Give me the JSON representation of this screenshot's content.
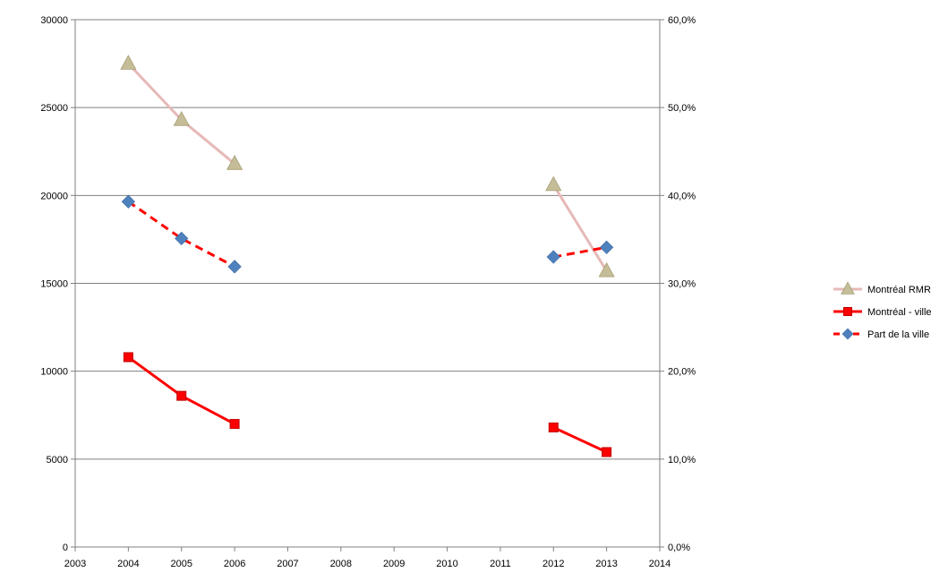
{
  "chart_data": {
    "type": "line",
    "title": "",
    "xlabel": "",
    "ylabel": "",
    "y2label": "",
    "grid": true,
    "legend_position": "right",
    "x_axis": {
      "range": [
        2003,
        2014
      ],
      "ticks": [
        "2003",
        "2004",
        "2005",
        "2006",
        "2007",
        "2008",
        "2009",
        "2010",
        "2011",
        "2012",
        "2013",
        "2014"
      ]
    },
    "y_axis_left": {
      "range": [
        0,
        30000
      ],
      "ticks": [
        "0",
        "5000",
        "10000",
        "15000",
        "20000",
        "25000",
        "30000"
      ]
    },
    "y_axis_right": {
      "range": [
        0,
        60
      ],
      "unit": "%",
      "ticks": [
        "0,0%",
        "10,0%",
        "20,0%",
        "30,0%",
        "40,0%",
        "50,0%",
        "60,0%"
      ]
    },
    "series": [
      {
        "name": "Montréal RMR",
        "axis": "left",
        "color": "#e6b9b8",
        "marker": "triangle",
        "marker_color": "#c4bd97",
        "line_style": "solid",
        "segments": [
          {
            "x": [
              2004,
              2005,
              2006
            ],
            "y": [
              27500,
              24300,
              21800
            ]
          },
          {
            "x": [
              2012,
              2013
            ],
            "y": [
              20600,
              15700
            ]
          }
        ]
      },
      {
        "name": "Montréal - ville",
        "axis": "left",
        "color": "#ff0000",
        "marker": "square",
        "marker_color": "#ff0000",
        "line_style": "solid",
        "segments": [
          {
            "x": [
              2004,
              2005,
              2006
            ],
            "y": [
              10800,
              8600,
              7000
            ]
          },
          {
            "x": [
              2012,
              2013
            ],
            "y": [
              6800,
              5400
            ]
          }
        ]
      },
      {
        "name": "Part de la ville",
        "axis": "right",
        "color": "#ff0000",
        "marker": "diamond",
        "marker_color": "#4f81bd",
        "line_style": "dashed",
        "segments": [
          {
            "x": [
              2004,
              2005,
              2006
            ],
            "y": [
              39.3,
              35.1,
              31.9
            ]
          },
          {
            "x": [
              2012,
              2013
            ],
            "y": [
              33.0,
              34.1
            ]
          }
        ]
      }
    ]
  }
}
